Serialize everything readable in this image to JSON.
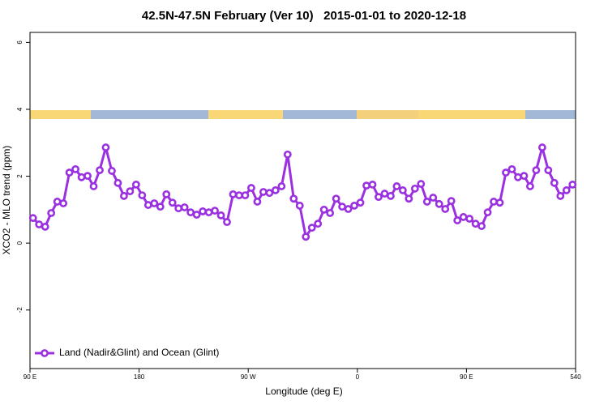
{
  "chart_data": {
    "type": "line",
    "title": "42.5N-47.5N February (Ver 10)   2015-01-01 to 2020-12-18",
    "x_label": "Longitude (deg E)",
    "y_label": "XCO2 - MLO trend (ppm)",
    "x": [
      92.5,
      97.5,
      102.5,
      107.5,
      112.5,
      117.5,
      122.5,
      127.5,
      132.5,
      137.5,
      142.5,
      147.5,
      152.5,
      157.5,
      162.5,
      167.5,
      172.5,
      177.5,
      182.5,
      187.5,
      192.5,
      197.5,
      202.5,
      207.5,
      212.5,
      217.5,
      222.5,
      227.5,
      232.5,
      237.5,
      242.5,
      247.5,
      252.5,
      257.5,
      262.5,
      267.5,
      272.5,
      277.5,
      282.5,
      287.5,
      292.5,
      297.5,
      302.5,
      307.5,
      312.5,
      317.5,
      322.5,
      327.5,
      332.5,
      337.5,
      342.5,
      347.5,
      352.5,
      357.5,
      362.5,
      367.5,
      372.5,
      377.5,
      382.5,
      387.5,
      392.5,
      397.5,
      402.5,
      407.5,
      412.5,
      417.5,
      422.5,
      427.5,
      432.5,
      437.5,
      442.5,
      447.5,
      452.5,
      457.5,
      462.5,
      467.5,
      472.5,
      477.5,
      482.5,
      487.5,
      492.5,
      497.5,
      502.5,
      507.5,
      512.5,
      517.5,
      522.5,
      527.5,
      532.5,
      537.5
    ],
    "series": [
      {
        "name": "Land (Nadir&Glint) and Ocean (Glint)",
        "color": "#9b30e0",
        "values": [
          0.75,
          0.56,
          0.49,
          0.9,
          1.24,
          1.19,
          2.11,
          2.21,
          1.97,
          2.01,
          1.7,
          2.18,
          2.86,
          2.16,
          1.8,
          1.41,
          1.55,
          1.75,
          1.43,
          1.14,
          1.19,
          1.09,
          1.46,
          1.21,
          1.04,
          1.07,
          0.92,
          0.85,
          0.95,
          0.92,
          0.97,
          0.83,
          0.63,
          1.46,
          1.43,
          1.43,
          1.65,
          1.24,
          1.53,
          1.5,
          1.58,
          1.7,
          2.65,
          1.33,
          1.12,
          0.19,
          0.46,
          0.58,
          1.0,
          0.9,
          1.33,
          1.09,
          1.02,
          1.12,
          1.21,
          1.72,
          1.75,
          1.38,
          1.48,
          1.41,
          1.7,
          1.58,
          1.33,
          1.63,
          1.77,
          1.24,
          1.36,
          1.17,
          1.02,
          1.26,
          0.68,
          0.78,
          0.73,
          0.58,
          0.51,
          0.92,
          1.24,
          1.21,
          2.11,
          2.21,
          1.97,
          2.01,
          1.7,
          2.18,
          2.86,
          2.18,
          1.8,
          1.41,
          1.58,
          1.75
        ]
      }
    ],
    "xlim": [
      90,
      540
    ],
    "xticks": [
      {
        "value": 90,
        "label": "90 E"
      },
      180,
      {
        "value": 270,
        "label": "90 W"
      },
      {
        "value": 360,
        "label": "0"
      },
      {
        "value": 450,
        "label": "90 E"
      },
      540
    ],
    "ylim": [
      -3.75,
      6.3
    ],
    "yticks": [
      -2,
      0,
      2,
      4,
      6
    ],
    "grid": false,
    "legend": "lower left"
  }
}
